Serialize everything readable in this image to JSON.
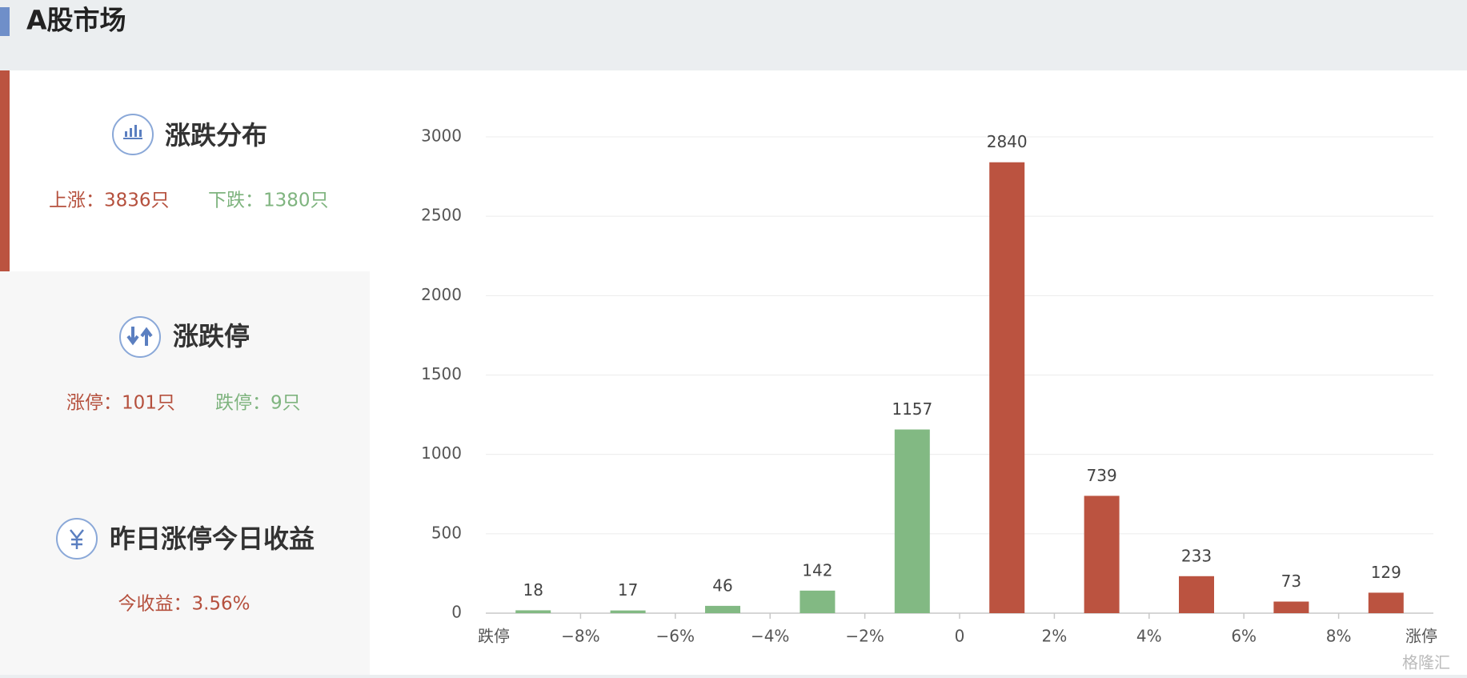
{
  "header": {
    "title": "A股市场"
  },
  "panels": [
    {
      "title": "涨跌分布",
      "stats": [
        "上涨：3836只",
        "下跌：1380只"
      ]
    },
    {
      "title": "涨跌停",
      "stats": [
        "涨停：101只",
        "跌停：9只"
      ]
    },
    {
      "title": "昨日涨停今日收益",
      "stats": [
        "今收益：3.56%"
      ]
    }
  ],
  "watermark": "格隆汇",
  "chart_data": {
    "type": "histogram",
    "bins": [
      "跌停",
      "−8%",
      "−6%",
      "−4%",
      "−2%",
      "0",
      "2%",
      "4%",
      "6%",
      "8%",
      "涨停"
    ],
    "values": [
      18,
      17,
      46,
      142,
      1157,
      2840,
      739,
      233,
      73,
      129
    ],
    "colors": [
      "#82b983",
      "#82b983",
      "#82b983",
      "#82b983",
      "#82b983",
      "#bb5340",
      "#bb5340",
      "#bb5340",
      "#bb5340",
      "#bb5340"
    ],
    "ylim": [
      0,
      3000
    ],
    "yticks": [
      0,
      500,
      1000,
      1500,
      2000,
      2500,
      3000
    ],
    "grid": true
  }
}
